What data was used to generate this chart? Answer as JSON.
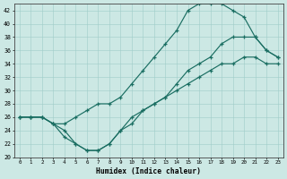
{
  "xlabel": "Humidex (Indice chaleur)",
  "xlim": [
    -0.5,
    23.5
  ],
  "ylim": [
    20,
    43
  ],
  "xticks": [
    0,
    1,
    2,
    3,
    4,
    5,
    6,
    7,
    8,
    9,
    10,
    11,
    12,
    13,
    14,
    15,
    16,
    17,
    18,
    19,
    20,
    21,
    22,
    23
  ],
  "yticks": [
    20,
    22,
    24,
    26,
    28,
    30,
    32,
    34,
    36,
    38,
    40,
    42
  ],
  "bg_color": "#cce8e4",
  "line_color": "#1a6e62",
  "curve1_x": [
    0,
    1,
    2,
    3,
    4,
    5,
    6,
    7,
    8,
    9,
    10,
    11,
    12,
    13,
    14,
    15,
    16,
    17,
    18,
    19,
    20,
    21,
    22,
    23
  ],
  "curve1_y": [
    26,
    26,
    26,
    25,
    25,
    26,
    27,
    28,
    28,
    29,
    31,
    33,
    35,
    37,
    39,
    42,
    43,
    43,
    43,
    42,
    41,
    38,
    36,
    35
  ],
  "curve2_x": [
    0,
    1,
    2,
    3,
    4,
    5,
    6,
    7,
    8,
    9,
    10,
    11,
    12,
    13,
    14,
    15,
    16,
    17,
    18,
    19,
    20,
    21,
    22,
    23
  ],
  "curve2_y": [
    26,
    26,
    26,
    25,
    24,
    22,
    21,
    21,
    22,
    24,
    26,
    27,
    28,
    29,
    31,
    33,
    34,
    35,
    37,
    38,
    38,
    38,
    36,
    35
  ],
  "curve3_x": [
    0,
    1,
    2,
    3,
    4,
    5,
    6,
    7,
    8,
    9,
    10,
    11,
    12,
    13,
    14,
    15,
    16,
    17,
    18,
    19,
    20,
    21,
    22,
    23
  ],
  "curve3_y": [
    26,
    26,
    26,
    25,
    23,
    22,
    21,
    21,
    22,
    24,
    25,
    27,
    28,
    29,
    30,
    31,
    32,
    33,
    34,
    34,
    35,
    35,
    34,
    34
  ]
}
